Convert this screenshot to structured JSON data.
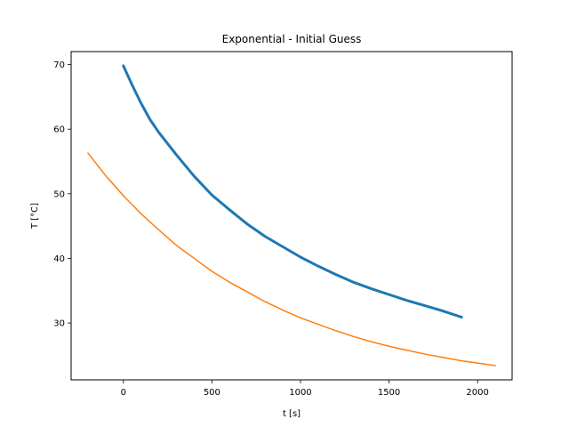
{
  "chart_data": {
    "type": "line",
    "title": "Exponential - Initial Guess",
    "xlabel": "t [s]",
    "ylabel": "T [°C]",
    "xlim": [
      -295,
      2195
    ],
    "ylim": [
      21.2,
      72.0
    ],
    "xticks": [
      0,
      500,
      1000,
      1500,
      2000
    ],
    "yticks": [
      30,
      40,
      50,
      60,
      70
    ],
    "grid": false,
    "legend": "none",
    "series": [
      {
        "color": "#1f77b4",
        "x": [
          0,
          50,
          100,
          150,
          200,
          300,
          400,
          500,
          600,
          700,
          800,
          900,
          1000,
          1100,
          1200,
          1300,
          1400,
          1500,
          1600,
          1700,
          1800,
          1910
        ],
        "values": [
          69.8,
          66.8,
          64.0,
          61.5,
          59.5,
          56.0,
          52.7,
          49.8,
          47.5,
          45.3,
          43.4,
          41.8,
          40.2,
          38.8,
          37.5,
          36.3,
          35.3,
          34.4,
          33.5,
          32.7,
          31.9,
          30.9
        ]
      },
      {
        "color": "#ff7f0e",
        "x": [
          -200,
          -100,
          0,
          100,
          200,
          300,
          400,
          500,
          600,
          700,
          800,
          900,
          1000,
          1100,
          1200,
          1300,
          1400,
          1500,
          1600,
          1700,
          1800,
          1900,
          2000,
          2100
        ],
        "values": [
          56.3,
          52.8,
          49.7,
          46.9,
          44.4,
          42.0,
          40.0,
          38.0,
          36.3,
          34.8,
          33.3,
          32.0,
          30.8,
          29.8,
          28.8,
          27.9,
          27.1,
          26.4,
          25.8,
          25.2,
          24.7,
          24.2,
          23.8,
          23.4
        ]
      }
    ]
  }
}
